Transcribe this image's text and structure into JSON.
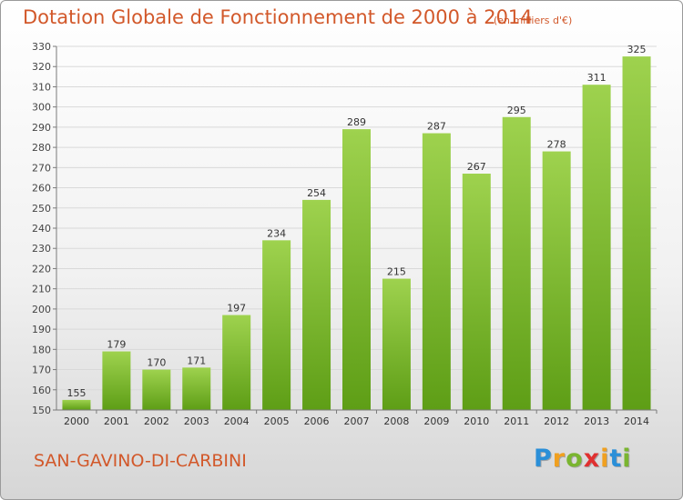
{
  "title": "Dotation Globale de Fonctionnement de 2000 à 2014",
  "subtitle": "(en milliers d'€)",
  "commune": "SAN-GAVINO-DI-CARBINI",
  "logo": {
    "text": "Proxiti",
    "letters": [
      "P",
      "r",
      "o",
      "x",
      "i",
      "t",
      "i"
    ],
    "colors": [
      "#2a8fd8",
      "#f0a020",
      "#7ab530",
      "#e03030",
      "#f0a020",
      "#2a8fd8",
      "#7ab530"
    ]
  },
  "colors": {
    "title": "#d2582a",
    "bar_top": "#9ed24e",
    "bar_bottom": "#5e9e16",
    "grid": "#d9d9d9",
    "axis": "#7a7a7a"
  },
  "chart_data": {
    "type": "bar",
    "categories": [
      "2000",
      "2001",
      "2002",
      "2003",
      "2004",
      "2005",
      "2006",
      "2007",
      "2008",
      "2009",
      "2010",
      "2011",
      "2012",
      "2013",
      "2014"
    ],
    "values": [
      155,
      179,
      170,
      171,
      197,
      234,
      254,
      289,
      215,
      287,
      267,
      295,
      278,
      311,
      325
    ],
    "ylim": [
      150,
      330
    ],
    "yticks": [
      150,
      160,
      170,
      180,
      190,
      200,
      210,
      220,
      230,
      240,
      250,
      260,
      270,
      280,
      290,
      300,
      310,
      320,
      330
    ],
    "grid": true,
    "data_labels": true
  }
}
